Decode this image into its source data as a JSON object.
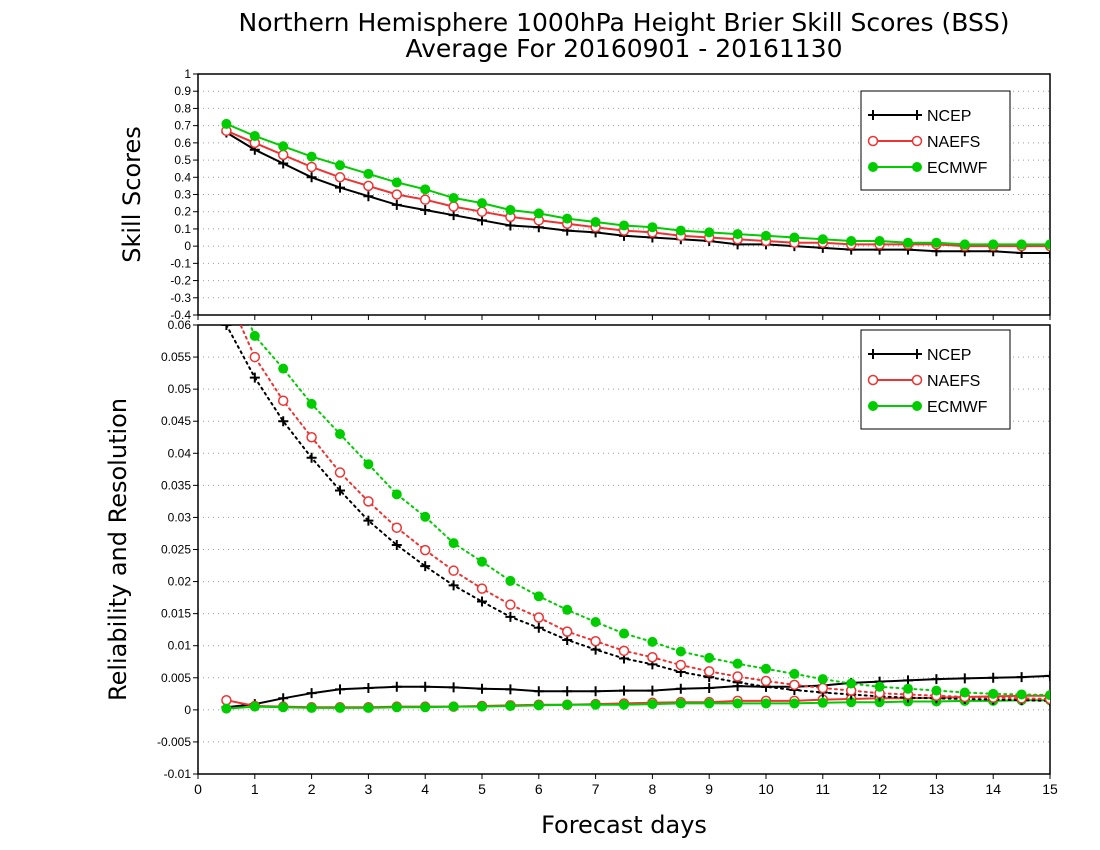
{
  "title_line1": "Northern Hemisphere 1000hPa Height Brier Skill Scores (BSS)",
  "title_line2": "Average For 20160901 - 20161130",
  "xlabel": "Forecast days",
  "colors": {
    "NCEP": "#000000",
    "NAEFS": "#ee3333",
    "ECMWF": "#00cc00"
  },
  "chart_data": [
    {
      "type": "line",
      "ylabel": "Skill Scores",
      "xlim": [
        0,
        15
      ],
      "ylim": [
        -0.4,
        1
      ],
      "yticks": [
        "-0.4",
        "-0.3",
        "-0.2",
        "-0.1",
        "0",
        "0.1",
        "0.2",
        "0.3",
        "0.4",
        "0.5",
        "0.6",
        "0.7",
        "0.8",
        "0.9",
        "1"
      ],
      "xticks": [
        "0",
        "1",
        "2",
        "3",
        "4",
        "5",
        "6",
        "7",
        "8",
        "9",
        "10",
        "11",
        "12",
        "13",
        "14",
        "15"
      ],
      "grid": true,
      "legend_position": "top-right",
      "x": [
        0.5,
        1,
        1.5,
        2,
        2.5,
        3,
        3.5,
        4,
        4.5,
        5,
        5.5,
        6,
        6.5,
        7,
        7.5,
        8,
        8.5,
        9,
        9.5,
        10,
        10.5,
        11,
        11.5,
        12,
        12.5,
        13,
        13.5,
        14,
        14.5,
        15
      ],
      "series": [
        {
          "name": "NCEP",
          "marker": "plus",
          "style": "solid",
          "values": [
            0.66,
            0.56,
            0.48,
            0.4,
            0.34,
            0.29,
            0.24,
            0.21,
            0.18,
            0.15,
            0.12,
            0.11,
            0.09,
            0.08,
            0.06,
            0.05,
            0.04,
            0.03,
            0.01,
            0.01,
            0.0,
            -0.01,
            -0.02,
            -0.02,
            -0.02,
            -0.03,
            -0.03,
            -0.03,
            -0.04,
            -0.04
          ]
        },
        {
          "name": "NAEFS",
          "marker": "circle-open",
          "style": "solid",
          "values": [
            0.67,
            0.6,
            0.53,
            0.46,
            0.4,
            0.35,
            0.3,
            0.27,
            0.23,
            0.2,
            0.17,
            0.15,
            0.13,
            0.11,
            0.09,
            0.08,
            0.06,
            0.05,
            0.04,
            0.03,
            0.02,
            0.02,
            0.01,
            0.01,
            0.01,
            0.01,
            0.0,
            0.0,
            0.0,
            0.0
          ]
        },
        {
          "name": "ECMWF",
          "marker": "circle-filled",
          "style": "solid",
          "values": [
            0.71,
            0.64,
            0.58,
            0.52,
            0.47,
            0.42,
            0.37,
            0.33,
            0.28,
            0.25,
            0.21,
            0.19,
            0.16,
            0.14,
            0.12,
            0.11,
            0.09,
            0.08,
            0.07,
            0.06,
            0.05,
            0.04,
            0.03,
            0.03,
            0.02,
            0.02,
            0.01,
            0.01,
            0.01,
            0.01
          ]
        }
      ]
    },
    {
      "type": "line",
      "ylabel": "Reliability and Resolution",
      "xlim": [
        0,
        15
      ],
      "ylim": [
        -0.01,
        0.06
      ],
      "yticks": [
        "-0.01",
        "-0.005",
        "0",
        "0.005",
        "0.01",
        "0.015",
        "0.02",
        "0.025",
        "0.03",
        "0.035",
        "0.04",
        "0.045",
        "0.05",
        "0.055",
        "0.06"
      ],
      "xticks": [
        "0",
        "1",
        "2",
        "3",
        "4",
        "5",
        "6",
        "7",
        "8",
        "9",
        "10",
        "11",
        "12",
        "13",
        "14",
        "15"
      ],
      "grid": true,
      "legend_position": "top-right",
      "x": [
        0.5,
        1,
        1.5,
        2,
        2.5,
        3,
        3.5,
        4,
        4.5,
        5,
        5.5,
        6,
        6.5,
        7,
        7.5,
        8,
        8.5,
        9,
        9.5,
        10,
        10.5,
        11,
        11.5,
        12,
        12.5,
        13,
        13.5,
        14,
        14.5,
        15
      ],
      "series": [
        {
          "name": "NCEP",
          "metric": "reliability",
          "marker": "plus",
          "style": "solid",
          "values": [
            0.0004,
            0.0009,
            0.0018,
            0.0026,
            0.0032,
            0.0034,
            0.0036,
            0.0036,
            0.0035,
            0.0033,
            0.0032,
            0.0029,
            0.0029,
            0.0029,
            0.003,
            0.003,
            0.0033,
            0.0034,
            0.0037,
            0.0036,
            0.0036,
            0.0038,
            0.0042,
            0.0044,
            0.0046,
            0.0048,
            0.0049,
            0.005,
            0.0051,
            0.0053
          ]
        },
        {
          "name": "NAEFS",
          "metric": "reliability",
          "marker": "circle-open",
          "style": "solid",
          "values": [
            0.0015,
            0.0006,
            0.0005,
            0.0004,
            0.0004,
            0.0004,
            0.0005,
            0.0005,
            0.0005,
            0.0006,
            0.0007,
            0.0008,
            0.0008,
            0.0009,
            0.001,
            0.0011,
            0.0012,
            0.0012,
            0.0014,
            0.0014,
            0.0014,
            0.0016,
            0.0017,
            0.0018,
            0.0018,
            0.0019,
            0.002,
            0.0021,
            0.0022,
            0.0022
          ]
        },
        {
          "name": "ECMWF",
          "metric": "reliability",
          "marker": "circle-filled",
          "style": "solid",
          "values": [
            0.0002,
            0.0005,
            0.0004,
            0.0003,
            0.0003,
            0.0003,
            0.0004,
            0.0004,
            0.0005,
            0.0005,
            0.0006,
            0.0007,
            0.0008,
            0.0008,
            0.0008,
            0.0009,
            0.001,
            0.001,
            0.001,
            0.001,
            0.001,
            0.0011,
            0.0012,
            0.0012,
            0.0013,
            0.0013,
            0.0014,
            0.0014,
            0.0015,
            0.0015
          ]
        },
        {
          "name": "NCEP",
          "metric": "resolution",
          "marker": "plus",
          "style": "dotted",
          "values": [
            0.06,
            0.0518,
            0.045,
            0.0393,
            0.0342,
            0.0295,
            0.0257,
            0.0224,
            0.0194,
            0.0169,
            0.0145,
            0.0128,
            0.0109,
            0.0094,
            0.008,
            0.0071,
            0.0059,
            0.0051,
            0.0043,
            0.0036,
            0.0031,
            0.0027,
            0.0024,
            0.0021,
            0.0019,
            0.0018,
            0.0017,
            0.0016,
            0.0015,
            0.0014
          ]
        },
        {
          "name": "NAEFS",
          "metric": "resolution",
          "marker": "circle-open",
          "style": "dotted",
          "values": [
            0.065,
            0.055,
            0.0482,
            0.0425,
            0.037,
            0.0325,
            0.0284,
            0.0249,
            0.0217,
            0.0189,
            0.0164,
            0.0144,
            0.0122,
            0.0107,
            0.0092,
            0.0082,
            0.007,
            0.006,
            0.0052,
            0.0045,
            0.0039,
            0.0034,
            0.003,
            0.0026,
            0.0024,
            0.0022,
            0.002,
            0.0019,
            0.0018,
            0.0017
          ]
        },
        {
          "name": "ECMWF",
          "metric": "resolution",
          "marker": "circle-filled",
          "style": "dotted",
          "values": [
            0.069,
            0.0583,
            0.0532,
            0.0477,
            0.043,
            0.0383,
            0.0336,
            0.0301,
            0.026,
            0.0231,
            0.0201,
            0.0177,
            0.0156,
            0.0137,
            0.0119,
            0.0106,
            0.0091,
            0.0081,
            0.0072,
            0.0064,
            0.0056,
            0.0048,
            0.0041,
            0.0036,
            0.0033,
            0.003,
            0.0027,
            0.0025,
            0.0024,
            0.0023
          ]
        }
      ]
    }
  ]
}
